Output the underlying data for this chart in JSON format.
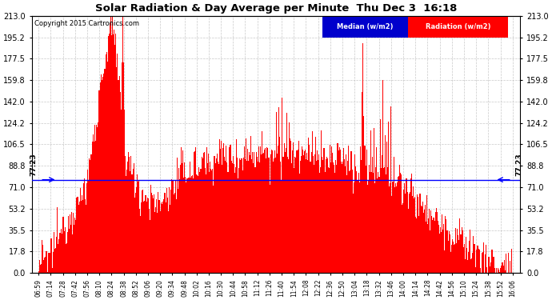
{
  "title": "Solar Radiation & Day Average per Minute  Thu Dec 3  16:18",
  "copyright": "Copyright 2015 Cartronics.com",
  "median_value": 77.23,
  "y_max": 213.0,
  "y_min": 0.0,
  "y_ticks": [
    0.0,
    17.8,
    35.5,
    53.2,
    71.0,
    88.8,
    106.5,
    124.2,
    142.0,
    159.8,
    177.5,
    195.2,
    213.0
  ],
  "x_labels": [
    "06:59",
    "07:14",
    "07:28",
    "07:42",
    "07:56",
    "08:10",
    "08:24",
    "08:38",
    "08:52",
    "09:06",
    "09:20",
    "09:34",
    "09:48",
    "10:02",
    "10:16",
    "10:30",
    "10:44",
    "10:58",
    "11:12",
    "11:26",
    "11:40",
    "11:54",
    "12:08",
    "12:22",
    "12:36",
    "12:50",
    "13:04",
    "13:18",
    "13:32",
    "13:46",
    "14:00",
    "14:14",
    "14:28",
    "14:42",
    "14:56",
    "15:10",
    "15:24",
    "15:38",
    "15:52",
    "16:06"
  ],
  "background_color": "#ffffff",
  "bar_color": "#ff0000",
  "median_line_color": "#0000ff",
  "grid_color": "#bbbbbb",
  "legend_median_bg": "#0000cc",
  "legend_radiation_bg": "#ff0000"
}
